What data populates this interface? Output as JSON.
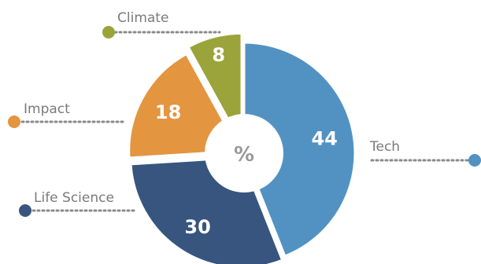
{
  "chart_data": {
    "type": "pie",
    "center_label": "%",
    "categories": [
      "Tech",
      "Life Science",
      "Impact",
      "Climate"
    ],
    "values": [
      44,
      30,
      18,
      8
    ],
    "value_labels": [
      "44",
      "30",
      "18",
      "8"
    ],
    "colors": [
      "#5292c3",
      "#37557e",
      "#e3953f",
      "#9aa43a"
    ],
    "title": "",
    "legend": "callouts"
  }
}
